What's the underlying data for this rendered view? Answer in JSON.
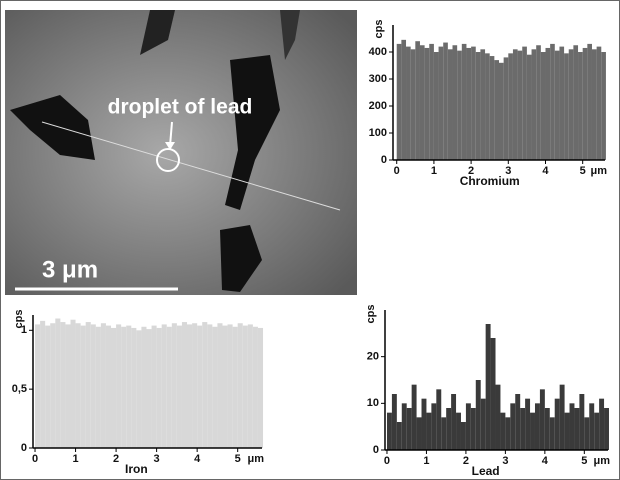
{
  "image": {
    "annotation": "droplet of lead",
    "scale_bar": "3 μm"
  },
  "chart_data": [
    {
      "type": "bar",
      "xlabel": "Chromium",
      "ylabel": "cps",
      "xunit": "μm",
      "color": "#6b6b6b",
      "xlim": [
        -0.1,
        5.6
      ],
      "ylim": [
        0,
        500
      ],
      "xticks": [
        0,
        1,
        2,
        3,
        4,
        5
      ],
      "yticks": [
        0,
        100,
        200,
        300,
        400
      ],
      "x": [
        0,
        0.125,
        0.25,
        0.375,
        0.5,
        0.625,
        0.75,
        0.875,
        1,
        1.125,
        1.25,
        1.375,
        1.5,
        1.625,
        1.75,
        1.875,
        2,
        2.125,
        2.25,
        2.375,
        2.5,
        2.625,
        2.75,
        2.875,
        3,
        3.125,
        3.25,
        3.375,
        3.5,
        3.625,
        3.75,
        3.875,
        4,
        4.125,
        4.25,
        4.375,
        4.5,
        4.625,
        4.75,
        4.875,
        5,
        5.125,
        5.25,
        5.375,
        5.5
      ],
      "values": [
        430,
        445,
        420,
        410,
        440,
        425,
        415,
        430,
        400,
        420,
        435,
        410,
        425,
        405,
        430,
        415,
        420,
        400,
        410,
        395,
        385,
        370,
        360,
        380,
        395,
        410,
        405,
        420,
        390,
        410,
        425,
        400,
        415,
        430,
        405,
        420,
        395,
        410,
        425,
        400,
        415,
        430,
        410,
        420,
        400
      ]
    },
    {
      "type": "bar",
      "xlabel": "Iron",
      "ylabel": "cps",
      "xunit": "μm",
      "color": "#d8d8d8",
      "xlim": [
        -0.05,
        5.6
      ],
      "ylim": [
        0,
        1.13
      ],
      "xticks": [
        0,
        1,
        2,
        3,
        4,
        5
      ],
      "yticks": [
        0,
        {
          "value": 0.5,
          "label": "0,5"
        },
        1
      ],
      "x": [
        0,
        0.125,
        0.25,
        0.375,
        0.5,
        0.625,
        0.75,
        0.875,
        1,
        1.125,
        1.25,
        1.375,
        1.5,
        1.625,
        1.75,
        1.875,
        2,
        2.125,
        2.25,
        2.375,
        2.5,
        2.625,
        2.75,
        2.875,
        3,
        3.125,
        3.25,
        3.375,
        3.5,
        3.625,
        3.75,
        3.875,
        4,
        4.125,
        4.25,
        4.375,
        4.5,
        4.625,
        4.75,
        4.875,
        5,
        5.125,
        5.25,
        5.375,
        5.5
      ],
      "values": [
        1.05,
        1.08,
        1.04,
        1.06,
        1.1,
        1.07,
        1.05,
        1.09,
        1.06,
        1.04,
        1.07,
        1.05,
        1.03,
        1.06,
        1.04,
        1.02,
        1.05,
        1.03,
        1.04,
        1.02,
        1.0,
        1.03,
        1.01,
        1.04,
        1.02,
        1.05,
        1.03,
        1.06,
        1.04,
        1.07,
        1.05,
        1.06,
        1.04,
        1.07,
        1.05,
        1.03,
        1.06,
        1.04,
        1.05,
        1.03,
        1.06,
        1.04,
        1.05,
        1.03,
        1.02
      ]
    },
    {
      "type": "bar",
      "xlabel": "Lead",
      "ylabel": "cps",
      "xunit": "μm",
      "color": "#3a3a3a",
      "xlim": [
        -0.05,
        5.6
      ],
      "ylim": [
        0,
        30
      ],
      "xticks": [
        0,
        1,
        2,
        3,
        4,
        5
      ],
      "yticks": [
        0,
        10,
        20
      ],
      "x": [
        0,
        0.125,
        0.25,
        0.375,
        0.5,
        0.625,
        0.75,
        0.875,
        1,
        1.125,
        1.25,
        1.375,
        1.5,
        1.625,
        1.75,
        1.875,
        2,
        2.125,
        2.25,
        2.375,
        2.5,
        2.625,
        2.75,
        2.875,
        3,
        3.125,
        3.25,
        3.375,
        3.5,
        3.625,
        3.75,
        3.875,
        4,
        4.125,
        4.25,
        4.375,
        4.5,
        4.625,
        4.75,
        4.875,
        5,
        5.125,
        5.25,
        5.375,
        5.5
      ],
      "values": [
        8,
        12,
        6,
        10,
        9,
        14,
        7,
        11,
        8,
        10,
        13,
        7,
        9,
        12,
        8,
        6,
        10,
        9,
        15,
        11,
        27,
        24,
        14,
        8,
        7,
        10,
        12,
        9,
        11,
        8,
        10,
        13,
        9,
        7,
        11,
        14,
        8,
        10,
        9,
        12,
        7,
        10,
        8,
        11,
        9
      ]
    }
  ]
}
